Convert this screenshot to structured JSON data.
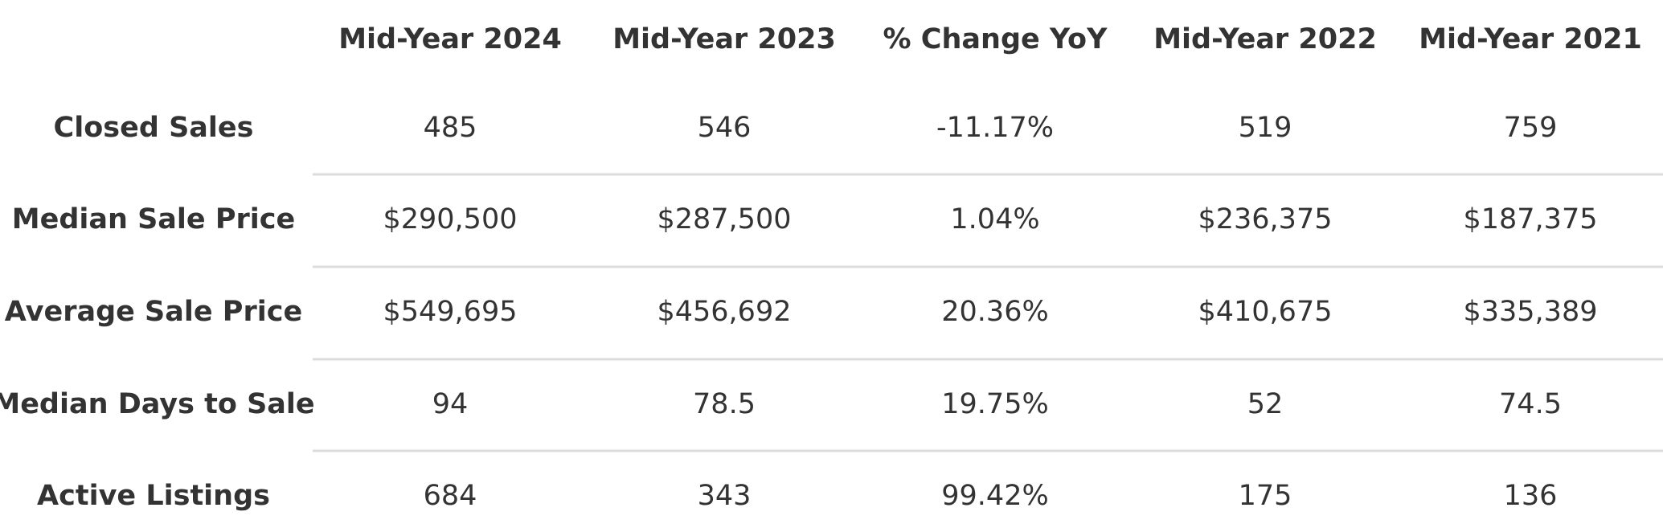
{
  "table": {
    "headers": [
      "Mid-Year 2024",
      "Mid-Year 2023",
      "% Change YoY",
      "Mid-Year 2022",
      "Mid-Year 2021"
    ],
    "rows": [
      {
        "label": "Closed Sales",
        "cells": [
          "485",
          "546",
          "-11.17%",
          "519",
          "759"
        ]
      },
      {
        "label": "Median Sale Price",
        "cells": [
          "$290,500",
          "$287,500",
          "1.04%",
          "$236,375",
          "$187,375"
        ]
      },
      {
        "label": "Average Sale Price",
        "cells": [
          "$549,695",
          "$456,692",
          "20.36%",
          "$410,675",
          "$335,389"
        ]
      },
      {
        "label": "Median Days to Sale",
        "cells": [
          "94",
          "78.5",
          "19.75%",
          "52",
          "74.5"
        ]
      },
      {
        "label": "Active Listings",
        "cells": [
          "684",
          "343",
          "99.42%",
          "175",
          "136"
        ]
      }
    ]
  }
}
